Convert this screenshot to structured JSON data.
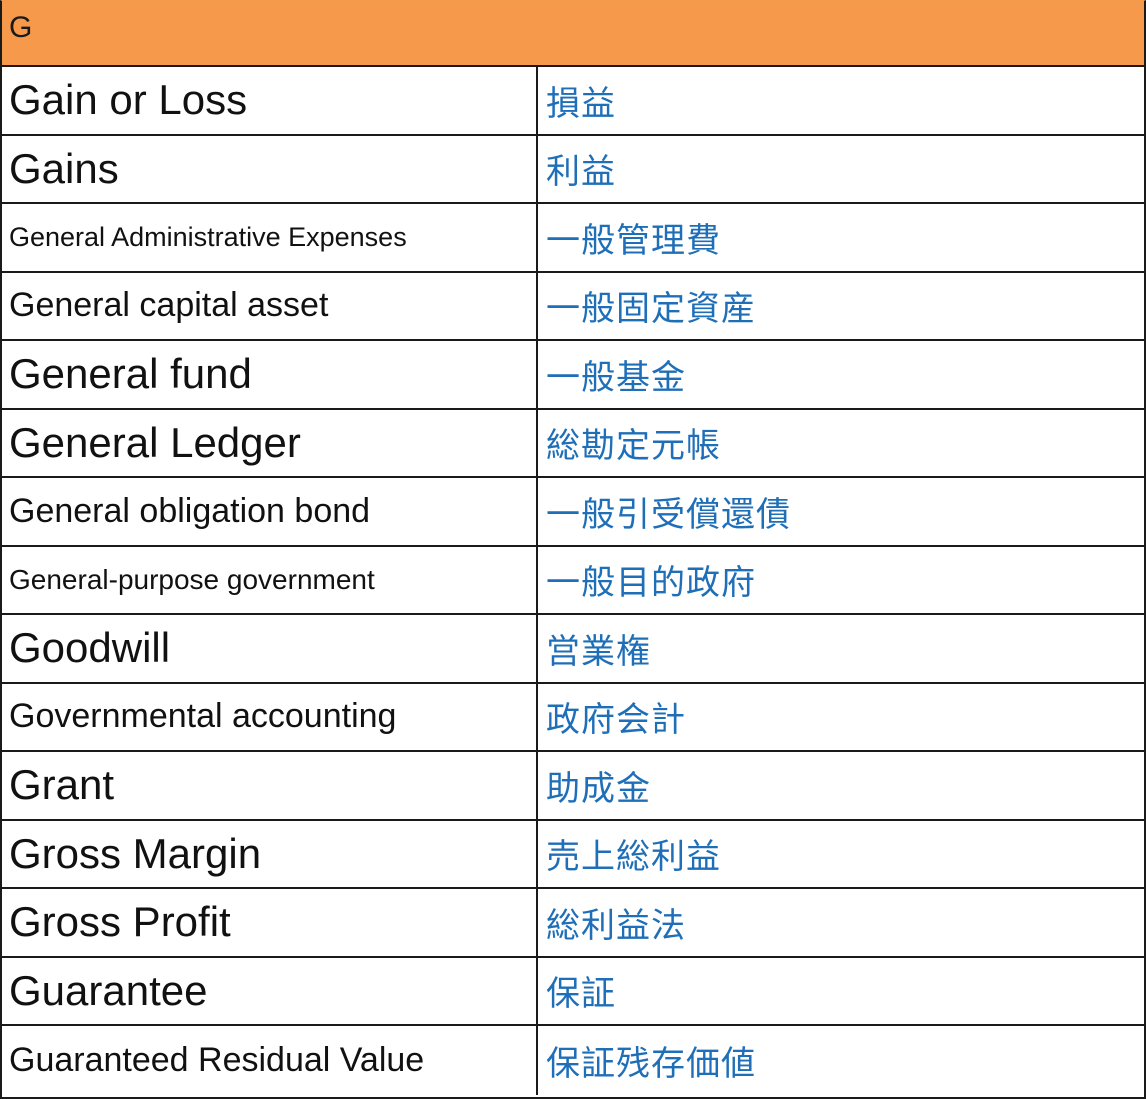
{
  "header": {
    "letter": "G"
  },
  "rows": [
    {
      "term": "Gain or Loss",
      "translation": "損益"
    },
    {
      "term": "Gains",
      "translation": "利益"
    },
    {
      "term": "General Administrative Expenses",
      "translation": "一般管理費"
    },
    {
      "term": "General capital asset",
      "translation": "一般固定資産"
    },
    {
      "term": "General fund",
      "translation": "一般基金"
    },
    {
      "term": "General Ledger",
      "translation": "総勘定元帳"
    },
    {
      "term": "General obligation bond",
      "translation": "一般引受償還債"
    },
    {
      "term": "General-purpose government",
      "translation": "一般目的政府"
    },
    {
      "term": "Goodwill",
      "translation": "営業権"
    },
    {
      "term": "Governmental accounting",
      "translation": "政府会計"
    },
    {
      "term": "Grant",
      "translation": "助成金"
    },
    {
      "term": "Gross Margin",
      "translation": "売上総利益"
    },
    {
      "term": "Gross Profit",
      "translation": "総利益法"
    },
    {
      "term": "Guarantee",
      "translation": "保証"
    },
    {
      "term": "Guaranteed Residual Value",
      "translation": "保証残存価値"
    }
  ],
  "colors": {
    "header_bg": "#f6994a",
    "translation_text": "#1f6fb8",
    "term_text": "#111111",
    "grid_line": "#1a1a1a"
  }
}
